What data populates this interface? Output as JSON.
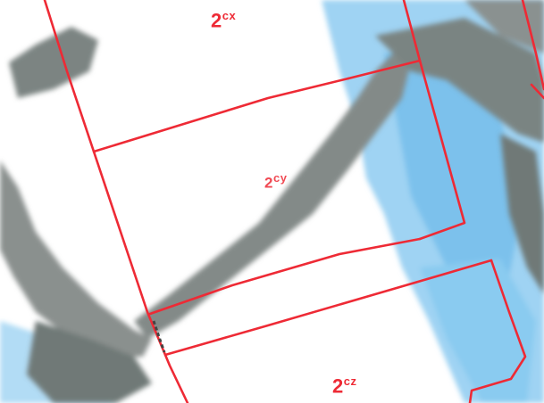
{
  "map": {
    "parcel_labels": [
      {
        "id": "2cx",
        "number": "2",
        "suffix": "cx"
      },
      {
        "id": "2cy",
        "number": "2",
        "suffix": "cy"
      },
      {
        "id": "2cz",
        "number": "2",
        "suffix": "cz"
      }
    ],
    "colors": {
      "boundary": "#ee2a35",
      "water": "#8ccaf0",
      "terrain": "#7b8280",
      "background": "#ffffff",
      "dashed_segment": "#444444"
    }
  }
}
